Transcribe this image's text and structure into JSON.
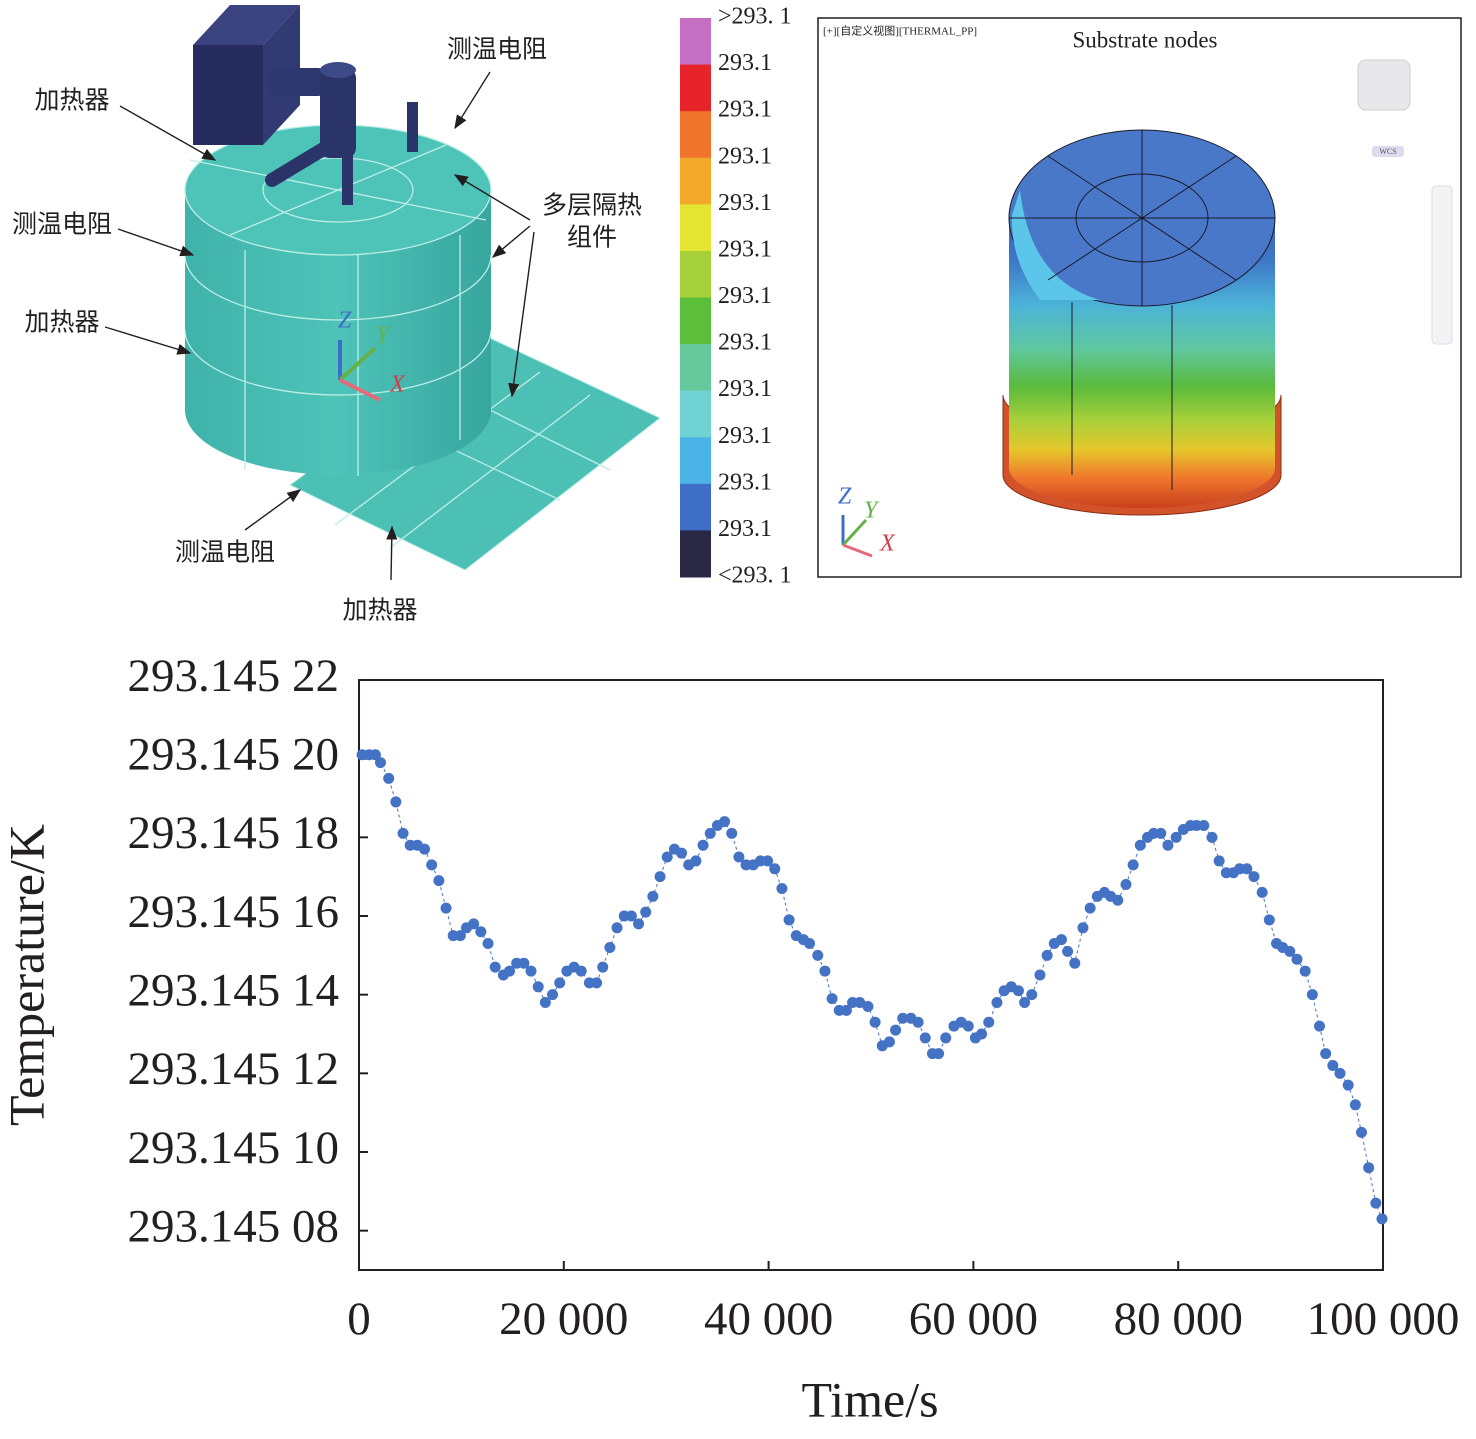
{
  "diagram": {
    "labels": [
      "加热器",
      "测温电阻",
      "加热器",
      "测温电阻",
      "多层隔热",
      "组件",
      "测温电阻",
      "加热器"
    ],
    "axes": [
      "Z",
      "Y",
      "X"
    ]
  },
  "legend": {
    "labels": [
      ">293. 1",
      "293.1",
      "293.1",
      "293.1",
      "293.1",
      "293.1",
      "293.1",
      "293.1",
      "293.1",
      "293.1",
      "293.1",
      "293.1",
      "<293. 1"
    ],
    "colors": [
      "#c46ec4",
      "#e8242b",
      "#f0742c",
      "#f2a82a",
      "#e4e532",
      "#a6d13b",
      "#5bbf3a",
      "#66c99b",
      "#70d2d2",
      "#4cb3e6",
      "#3f6ec6",
      "#292845"
    ]
  },
  "render": {
    "header": "[+][自定义视图][THERMAL_PP]",
    "title": "Substrate nodes",
    "badge": "WCS",
    "axes": [
      "Z",
      "Y",
      "X"
    ]
  },
  "chart_data": {
    "type": "line",
    "x_label": "Time/s",
    "y_label": "Temperature/K",
    "color": "#4472c4",
    "xlim": [
      0,
      100000
    ],
    "ylim": [
      293.14507,
      293.14522
    ],
    "xticks": [
      0,
      {
        "value": 20000,
        "label": "20 000"
      },
      {
        "value": 40000,
        "label": "40 000"
      },
      {
        "value": 60000,
        "label": "60 000"
      },
      {
        "value": 80000,
        "label": "80 000"
      },
      {
        "value": 100000,
        "label": "100 000"
      }
    ],
    "yticks": [
      {
        "value": 293.14508,
        "label": "293.145 08"
      },
      {
        "value": 293.1451,
        "label": "293.145 10"
      },
      {
        "value": 293.14512,
        "label": "293.145 12"
      },
      {
        "value": 293.14514,
        "label": "293.145 14"
      },
      {
        "value": 293.14516,
        "label": "293.145 16"
      },
      {
        "value": 293.14518,
        "label": "293.145 18"
      },
      {
        "value": 293.1452,
        "label": "293.145 20"
      },
      {
        "value": 293.14522,
        "label": "293.145 22"
      }
    ],
    "x": [
      300,
      1000,
      1600,
      2100,
      2900,
      3600,
      4300,
      5000,
      5700,
      6400,
      7100,
      7800,
      8500,
      9200,
      9900,
      10500,
      11200,
      11900,
      12600,
      13300,
      14100,
      14700,
      15400,
      16100,
      16800,
      17500,
      18200,
      18900,
      19600,
      20300,
      21000,
      21700,
      22500,
      23200,
      23800,
      24500,
      25200,
      25900,
      26600,
      27300,
      28000,
      28700,
      29400,
      30100,
      30800,
      31500,
      32200,
      32900,
      33600,
      34300,
      35000,
      35700,
      36400,
      37100,
      37800,
      38500,
      39200,
      39900,
      40600,
      41300,
      42000,
      42700,
      43400,
      44000,
      44800,
      45500,
      46200,
      46900,
      47600,
      48200,
      48900,
      49700,
      50400,
      51100,
      51800,
      52400,
      53100,
      53900,
      54600,
      55300,
      56000,
      56600,
      57300,
      58100,
      58800,
      59500,
      60200,
      60800,
      61500,
      62300,
      63000,
      63700,
      64400,
      65000,
      65700,
      66500,
      67200,
      67900,
      68600,
      69200,
      69900,
      70700,
      71400,
      72100,
      72800,
      73400,
      74100,
      74900,
      75600,
      76300,
      77000,
      77600,
      78300,
      79000,
      79800,
      80500,
      81200,
      81800,
      82500,
      83300,
      84000,
      84700,
      85400,
      86000,
      86700,
      87400,
      88200,
      88900,
      89600,
      90200,
      90900,
      91600,
      92400,
      93100,
      93800,
      94400,
      95100,
      95800,
      96600,
      97300,
      97900,
      98600,
      99300,
      99900
    ],
    "values": [
      293.145201,
      293.145201,
      293.145201,
      293.145199,
      293.145195,
      293.145189,
      293.145181,
      293.145178,
      293.145178,
      293.145177,
      293.145173,
      293.145169,
      293.145162,
      293.145155,
      293.145155,
      293.145157,
      293.145158,
      293.145156,
      293.145153,
      293.145147,
      293.145145,
      293.145146,
      293.145148,
      293.145148,
      293.145146,
      293.145142,
      293.145138,
      293.14514,
      293.145143,
      293.145146,
      293.145147,
      293.145146,
      293.145143,
      293.145143,
      293.145147,
      293.145152,
      293.145157,
      293.14516,
      293.14516,
      293.145158,
      293.145161,
      293.145165,
      293.14517,
      293.145175,
      293.145177,
      293.145176,
      293.145173,
      293.145174,
      293.145178,
      293.145181,
      293.145183,
      293.145184,
      293.145181,
      293.145175,
      293.145173,
      293.145173,
      293.145174,
      293.145174,
      293.145172,
      293.145167,
      293.145159,
      293.145155,
      293.145154,
      293.145153,
      293.14515,
      293.145146,
      293.145139,
      293.145136,
      293.145136,
      293.145138,
      293.145138,
      293.145137,
      293.145133,
      293.145127,
      293.145128,
      293.145131,
      293.145134,
      293.145134,
      293.145133,
      293.145129,
      293.145125,
      293.145125,
      293.145129,
      293.145132,
      293.145133,
      293.145132,
      293.145129,
      293.14513,
      293.145133,
      293.145138,
      293.145141,
      293.145142,
      293.145141,
      293.145138,
      293.14514,
      293.145145,
      293.14515,
      293.145153,
      293.145154,
      293.145151,
      293.145148,
      293.145157,
      293.145162,
      293.145165,
      293.145166,
      293.145165,
      293.145164,
      293.145168,
      293.145173,
      293.145178,
      293.14518,
      293.145181,
      293.145181,
      293.145178,
      293.14518,
      293.145182,
      293.145183,
      293.145183,
      293.145183,
      293.14518,
      293.145174,
      293.145171,
      293.145171,
      293.145172,
      293.145172,
      293.14517,
      293.145166,
      293.145159,
      293.145153,
      293.145152,
      293.145151,
      293.145149,
      293.145146,
      293.14514,
      293.145132,
      293.145125,
      293.145122,
      293.14512,
      293.145117,
      293.145112,
      293.145105,
      293.145096,
      293.145087,
      293.145083
    ]
  }
}
